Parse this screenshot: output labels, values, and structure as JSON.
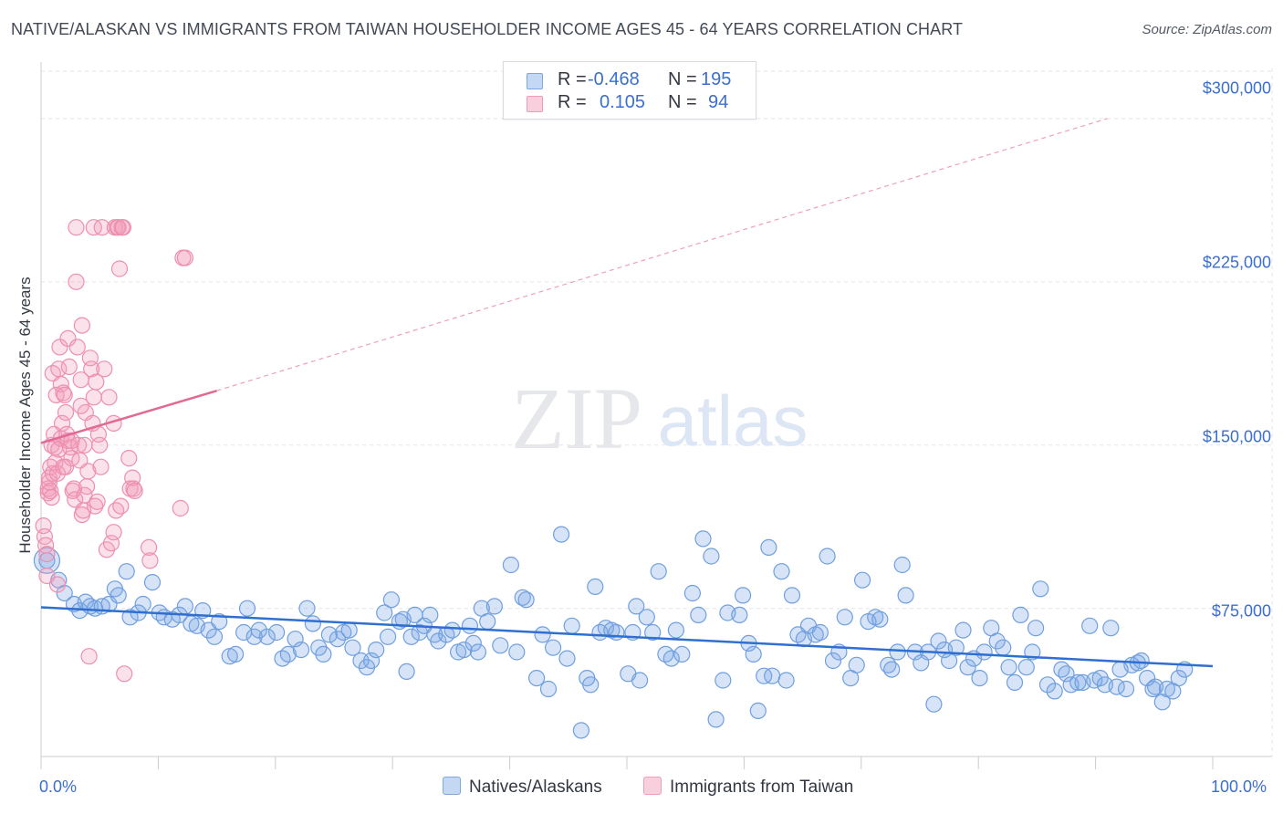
{
  "header": {
    "title": "NATIVE/ALASKAN VS IMMIGRANTS FROM TAIWAN HOUSEHOLDER INCOME AGES 45 - 64 YEARS CORRELATION CHART",
    "source": "Source: ZipAtlas.com"
  },
  "watermark": {
    "zip": "ZIP",
    "atlas": "atlas"
  },
  "legend": {
    "rows": [
      {
        "r_label": "R =",
        "r_value": "-0.468",
        "n_label": "N =",
        "n_value": "195"
      },
      {
        "r_label": "R =",
        "r_value": "0.105",
        "n_label": "N =",
        "n_value": "94"
      }
    ]
  },
  "chart_data": {
    "type": "scatter",
    "title": "NATIVE/ALASKAN VS IMMIGRANTS FROM TAIWAN HOUSEHOLDER INCOME AGES 45 - 64 YEARS CORRELATION CHART",
    "xlabel": "",
    "ylabel": "Householder Income Ages 45 - 64 years",
    "xlim": [
      0,
      100
    ],
    "ylim": [
      7000,
      323000
    ],
    "x_tick_labels": [
      "0.0%",
      "100.0%"
    ],
    "y_ticks": [
      75000,
      150000,
      225000,
      300000
    ],
    "y_tick_labels": [
      "$75,000",
      "$150,000",
      "$225,000",
      "$300,000"
    ],
    "grid": true,
    "legend_position": "bottom-center",
    "series": [
      {
        "name": "Natives/Alaskans",
        "color": "#7ba7e3",
        "r": -0.468,
        "n": 195,
        "trend": {
          "x": [
            0,
            100
          ],
          "y": [
            75500,
            48500
          ]
        },
        "points": [
          [
            0.5,
            97000
          ],
          [
            1.5,
            88000
          ],
          [
            2,
            82000
          ],
          [
            2.8,
            77000
          ],
          [
            3.3,
            74000
          ],
          [
            3.8,
            78000
          ],
          [
            4.2,
            76000
          ],
          [
            4.6,
            75000
          ],
          [
            5.2,
            76000
          ],
          [
            5.8,
            77000
          ],
          [
            6.3,
            84000
          ],
          [
            6.6,
            81000
          ],
          [
            7.3,
            92000
          ],
          [
            7.6,
            71000
          ],
          [
            8.3,
            73000
          ],
          [
            8.7,
            77000
          ],
          [
            9.5,
            87000
          ],
          [
            10.1,
            73000
          ],
          [
            10.5,
            71000
          ],
          [
            11.2,
            70000
          ],
          [
            11.8,
            72000
          ],
          [
            12.3,
            76000
          ],
          [
            12.8,
            68000
          ],
          [
            13.3,
            67000
          ],
          [
            13.8,
            74000
          ],
          [
            14.3,
            65000
          ],
          [
            14.8,
            62000
          ],
          [
            15.2,
            69000
          ],
          [
            16.1,
            53000
          ],
          [
            16.6,
            54000
          ],
          [
            17.3,
            64000
          ],
          [
            17.6,
            75000
          ],
          [
            18.2,
            62000
          ],
          [
            18.6,
            65000
          ],
          [
            19.3,
            62000
          ],
          [
            20.1,
            64000
          ],
          [
            20.6,
            52000
          ],
          [
            21.1,
            54000
          ],
          [
            21.7,
            61000
          ],
          [
            22.2,
            56000
          ],
          [
            22.7,
            75000
          ],
          [
            23.2,
            68000
          ],
          [
            23.7,
            57000
          ],
          [
            24.1,
            54000
          ],
          [
            24.6,
            63000
          ],
          [
            25.3,
            61000
          ],
          [
            25.8,
            64000
          ],
          [
            26.3,
            65000
          ],
          [
            26.6,
            57000
          ],
          [
            27.3,
            51000
          ],
          [
            27.8,
            48000
          ],
          [
            28.2,
            51000
          ],
          [
            28.6,
            56000
          ],
          [
            29.3,
            73000
          ],
          [
            29.6,
            62000
          ],
          [
            29.9,
            79000
          ],
          [
            30.6,
            69000
          ],
          [
            30.9,
            70000
          ],
          [
            31.2,
            46000
          ],
          [
            31.6,
            62000
          ],
          [
            31.9,
            72000
          ],
          [
            32.3,
            64000
          ],
          [
            32.7,
            67000
          ],
          [
            33.2,
            72000
          ],
          [
            33.6,
            63000
          ],
          [
            33.9,
            60000
          ],
          [
            34.6,
            63000
          ],
          [
            35.1,
            65000
          ],
          [
            35.6,
            55000
          ],
          [
            36.1,
            56000
          ],
          [
            36.6,
            67000
          ],
          [
            36.9,
            59000
          ],
          [
            37.3,
            55000
          ],
          [
            37.6,
            75000
          ],
          [
            38.1,
            69000
          ],
          [
            38.7,
            76000
          ],
          [
            39.2,
            58000
          ],
          [
            40.1,
            95000
          ],
          [
            40.6,
            55000
          ],
          [
            41.1,
            80000
          ],
          [
            41.4,
            79000
          ],
          [
            42.3,
            43000
          ],
          [
            42.8,
            63000
          ],
          [
            43.3,
            38000
          ],
          [
            43.7,
            57000
          ],
          [
            44.4,
            109000
          ],
          [
            44.9,
            52000
          ],
          [
            45.3,
            67000
          ],
          [
            46.1,
            19000
          ],
          [
            46.6,
            43000
          ],
          [
            46.9,
            40000
          ],
          [
            47.3,
            85000
          ],
          [
            47.7,
            64000
          ],
          [
            48.2,
            66000
          ],
          [
            48.7,
            65000
          ],
          [
            49.1,
            64000
          ],
          [
            50.1,
            45000
          ],
          [
            50.5,
            64000
          ],
          [
            50.8,
            76000
          ],
          [
            51.1,
            42000
          ],
          [
            51.7,
            71000
          ],
          [
            52.2,
            64000
          ],
          [
            52.7,
            92000
          ],
          [
            53.3,
            54000
          ],
          [
            53.8,
            52000
          ],
          [
            54.2,
            65000
          ],
          [
            54.7,
            54000
          ],
          [
            55.6,
            82000
          ],
          [
            56.1,
            72000
          ],
          [
            56.5,
            107000
          ],
          [
            57.2,
            99000
          ],
          [
            57.6,
            24000
          ],
          [
            58.2,
            42000
          ],
          [
            58.6,
            73000
          ],
          [
            59.6,
            72000
          ],
          [
            59.9,
            81000
          ],
          [
            60.4,
            59000
          ],
          [
            60.8,
            54000
          ],
          [
            61.2,
            28000
          ],
          [
            61.7,
            44000
          ],
          [
            62.1,
            103000
          ],
          [
            62.4,
            44000
          ],
          [
            63.2,
            92000
          ],
          [
            63.6,
            42000
          ],
          [
            64.1,
            81000
          ],
          [
            64.6,
            63000
          ],
          [
            65.1,
            61000
          ],
          [
            65.5,
            67000
          ],
          [
            66.1,
            63000
          ],
          [
            66.5,
            64000
          ],
          [
            67.1,
            99000
          ],
          [
            67.6,
            51000
          ],
          [
            68.1,
            55000
          ],
          [
            68.6,
            71000
          ],
          [
            69.1,
            43000
          ],
          [
            69.6,
            49000
          ],
          [
            70.1,
            88000
          ],
          [
            70.6,
            69000
          ],
          [
            71.2,
            71000
          ],
          [
            71.6,
            70000
          ],
          [
            72.3,
            49000
          ],
          [
            72.6,
            47000
          ],
          [
            73.1,
            55000
          ],
          [
            73.5,
            95000
          ],
          [
            73.8,
            81000
          ],
          [
            74.6,
            55000
          ],
          [
            75.1,
            50000
          ],
          [
            75.7,
            55000
          ],
          [
            76.2,
            31000
          ],
          [
            76.6,
            60000
          ],
          [
            77.1,
            56000
          ],
          [
            77.5,
            51000
          ],
          [
            78.1,
            57000
          ],
          [
            78.7,
            65000
          ],
          [
            79.1,
            48000
          ],
          [
            79.6,
            52000
          ],
          [
            80.1,
            43000
          ],
          [
            80.5,
            55000
          ],
          [
            81.1,
            66000
          ],
          [
            81.6,
            60000
          ],
          [
            82.1,
            57000
          ],
          [
            82.6,
            48000
          ],
          [
            83.1,
            41000
          ],
          [
            83.6,
            72000
          ],
          [
            84.1,
            48000
          ],
          [
            84.6,
            55000
          ],
          [
            84.9,
            66000
          ],
          [
            85.3,
            84000
          ],
          [
            85.9,
            40000
          ],
          [
            86.5,
            37000
          ],
          [
            87.1,
            47000
          ],
          [
            87.5,
            45000
          ],
          [
            87.9,
            40000
          ],
          [
            88.5,
            41000
          ],
          [
            88.9,
            41000
          ],
          [
            89.5,
            67000
          ],
          [
            89.9,
            42000
          ],
          [
            90.4,
            43000
          ],
          [
            90.8,
            40000
          ],
          [
            91.3,
            66000
          ],
          [
            91.8,
            39000
          ],
          [
            92.1,
            47000
          ],
          [
            92.6,
            38000
          ],
          [
            93.1,
            49000
          ],
          [
            93.6,
            50000
          ],
          [
            93.9,
            51000
          ],
          [
            94.4,
            43000
          ],
          [
            94.9,
            38000
          ],
          [
            95.1,
            39000
          ],
          [
            95.7,
            32000
          ],
          [
            96.1,
            38000
          ],
          [
            96.6,
            37000
          ],
          [
            97.1,
            43000
          ],
          [
            97.6,
            47000
          ]
        ]
      },
      {
        "name": "Immigrants from Taiwan",
        "color": "#f29bb8",
        "r": 0.105,
        "n": 94,
        "trend": {
          "x": [
            0,
            15
          ],
          "y": [
            151000,
            175000
          ]
        },
        "trend_extension": {
          "x": [
            15,
            91
          ],
          "y": [
            175000,
            300000
          ]
        },
        "points": [
          [
            0.2,
            113000
          ],
          [
            0.3,
            108000
          ],
          [
            0.4,
            104000
          ],
          [
            0.5,
            100000
          ],
          [
            0.5,
            90000
          ],
          [
            0.6,
            130000
          ],
          [
            0.6,
            128000
          ],
          [
            0.7,
            133000
          ],
          [
            0.7,
            135000
          ],
          [
            0.8,
            129000
          ],
          [
            0.8,
            140000
          ],
          [
            0.9,
            150000
          ],
          [
            1,
            137000
          ],
          [
            1,
            183000
          ],
          [
            1.1,
            155000
          ],
          [
            1.2,
            142000
          ],
          [
            1.2,
            149000
          ],
          [
            1.3,
            173000
          ],
          [
            1.4,
            137000
          ],
          [
            1.5,
            148000
          ],
          [
            1.5,
            185000
          ],
          [
            1.6,
            195000
          ],
          [
            1.7,
            178000
          ],
          [
            1.7,
            153000
          ],
          [
            1.8,
            160000
          ],
          [
            1.9,
            174000
          ],
          [
            2,
            173000
          ],
          [
            2.1,
            165000
          ],
          [
            2.1,
            140000
          ],
          [
            2.2,
            155000
          ],
          [
            2.3,
            199000
          ],
          [
            2.3,
            152000
          ],
          [
            2.4,
            186000
          ],
          [
            2.5,
            149000
          ],
          [
            2.6,
            144000
          ],
          [
            2.7,
            129000
          ],
          [
            2.8,
            130000
          ],
          [
            2.9,
            125000
          ],
          [
            3,
            225000
          ],
          [
            3,
            250000
          ],
          [
            3.1,
            195000
          ],
          [
            3.2,
            150000
          ],
          [
            3.3,
            143000
          ],
          [
            3.4,
            180000
          ],
          [
            3.5,
            118000
          ],
          [
            3.5,
            205000
          ],
          [
            3.6,
            120000
          ],
          [
            3.7,
            150000
          ],
          [
            3.8,
            165000
          ],
          [
            3.9,
            131000
          ],
          [
            4,
            138000
          ],
          [
            4.1,
            53000
          ],
          [
            4.2,
            190000
          ],
          [
            4.3,
            185000
          ],
          [
            4.4,
            160000
          ],
          [
            4.5,
            172000
          ],
          [
            4.5,
            250000
          ],
          [
            4.6,
            122000
          ],
          [
            4.7,
            179000
          ],
          [
            4.8,
            124000
          ],
          [
            4.9,
            155000
          ],
          [
            5,
            150000
          ],
          [
            5.2,
            250000
          ],
          [
            5.4,
            185000
          ],
          [
            5.6,
            102000
          ],
          [
            5.8,
            172000
          ],
          [
            6,
            105000
          ],
          [
            6.2,
            110000
          ],
          [
            6.3,
            250000
          ],
          [
            6.4,
            120000
          ],
          [
            6.5,
            250000
          ],
          [
            6.6,
            250000
          ],
          [
            6.7,
            231000
          ],
          [
            6.8,
            122000
          ],
          [
            6.9,
            250000
          ],
          [
            7,
            250000
          ],
          [
            7.1,
            45000
          ],
          [
            7.5,
            144000
          ],
          [
            7.6,
            130000
          ],
          [
            7.8,
            135000
          ],
          [
            7.9,
            130000
          ],
          [
            8,
            129000
          ],
          [
            9.2,
            103000
          ],
          [
            9.3,
            97000
          ],
          [
            11.9,
            121000
          ],
          [
            12.1,
            236000
          ],
          [
            12.3,
            236000
          ],
          [
            3.4,
            168000
          ],
          [
            1.9,
            140000
          ],
          [
            2.6,
            152000
          ],
          [
            0.9,
            126000
          ],
          [
            5.1,
            140000
          ],
          [
            3.7,
            127000
          ],
          [
            6.2,
            160000
          ],
          [
            1.4,
            86000
          ]
        ]
      }
    ]
  }
}
